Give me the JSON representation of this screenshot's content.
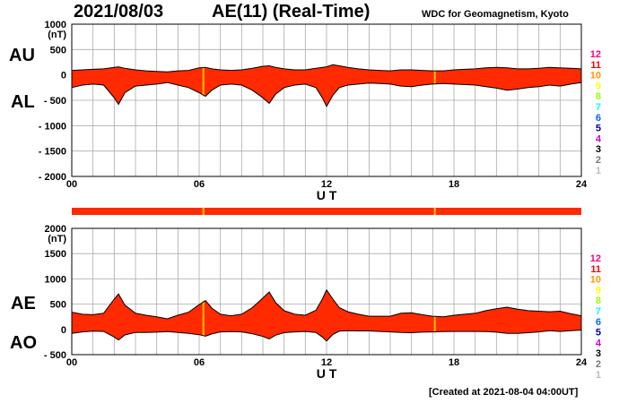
{
  "header": {
    "date": "2021/08/03",
    "title": "AE(11) (Real-Time)",
    "source": "WDC for Geomagnetism, Kyoto"
  },
  "footer": "[Created at 2021-08-04 04:00UT]",
  "colors": {
    "fill": "#ff2a00",
    "outline": "#000000",
    "highlight": "#ffc000",
    "grid": "#aaaaaa"
  },
  "station_count_legend": [
    {
      "label": "12",
      "color": "#ff0080"
    },
    {
      "label": "11",
      "color": "#ff0000"
    },
    {
      "label": "10",
      "color": "#ff9900"
    },
    {
      "label": "9",
      "color": "#ffff00"
    },
    {
      "label": "8",
      "color": "#99ff00"
    },
    {
      "label": "7",
      "color": "#00ffff"
    },
    {
      "label": "6",
      "color": "#0066ff"
    },
    {
      "label": "5",
      "color": "#0000aa"
    },
    {
      "label": "4",
      "color": "#cc00cc"
    },
    {
      "label": "3",
      "color": "#000000"
    },
    {
      "label": "2",
      "color": "#777777"
    },
    {
      "label": "1",
      "color": "#bbbbbb"
    }
  ],
  "chart_data": [
    {
      "type": "area",
      "id": "au-al",
      "upper_label": "AU",
      "lower_label": "AL",
      "unit": "(nT)",
      "xlabel": "U T",
      "xlim": [
        0,
        24
      ],
      "ylim": [
        -2000,
        1000
      ],
      "x_ticks": [
        "00",
        "06",
        "12",
        "18",
        "24"
      ],
      "y_ticks": [
        "1000",
        "500",
        "0",
        "- 500",
        "- 1000",
        "- 1500",
        "- 2000"
      ],
      "x": [
        0,
        0.5,
        1,
        1.5,
        2,
        2.2,
        2.5,
        3,
        3.5,
        4,
        4.5,
        5,
        5.5,
        6,
        6.3,
        6.6,
        7,
        7.5,
        8,
        8.5,
        9,
        9.3,
        9.6,
        10,
        10.5,
        11,
        11.5,
        11.8,
        12,
        12.3,
        12.6,
        13,
        13.5,
        14,
        14.5,
        15,
        15.5,
        16,
        16.5,
        17,
        17.5,
        18,
        18.5,
        19,
        19.5,
        20,
        20.5,
        21,
        21.5,
        22,
        22.5,
        23,
        23.5,
        24
      ],
      "au": [
        90,
        100,
        110,
        120,
        150,
        160,
        130,
        100,
        80,
        70,
        60,
        80,
        90,
        140,
        150,
        120,
        100,
        90,
        100,
        130,
        170,
        180,
        150,
        120,
        100,
        100,
        130,
        150,
        160,
        200,
        180,
        150,
        120,
        100,
        90,
        80,
        100,
        100,
        90,
        80,
        80,
        100,
        110,
        120,
        140,
        150,
        140,
        120,
        120,
        130,
        150,
        140,
        130,
        120
      ],
      "al": [
        -250,
        -200,
        -180,
        -200,
        -450,
        -580,
        -350,
        -220,
        -200,
        -180,
        -150,
        -200,
        -250,
        -350,
        -420,
        -300,
        -200,
        -180,
        -200,
        -300,
        -450,
        -560,
        -380,
        -250,
        -200,
        -180,
        -250,
        -450,
        -620,
        -400,
        -250,
        -200,
        -180,
        -160,
        -170,
        -180,
        -220,
        -230,
        -200,
        -180,
        -170,
        -180,
        -190,
        -200,
        -230,
        -260,
        -300,
        -280,
        -250,
        -230,
        -200,
        -220,
        -180,
        -150
      ],
      "highlights": [
        6.2,
        17.1
      ]
    },
    {
      "type": "area",
      "id": "ae-ao",
      "upper_label": "AE",
      "lower_label": "AO",
      "unit": "(nT)",
      "xlabel": "U T",
      "xlim": [
        0,
        24
      ],
      "ylim": [
        -500,
        2000
      ],
      "x_ticks": [
        "00",
        "06",
        "12",
        "18",
        "24"
      ],
      "y_ticks": [
        "2000",
        "1500",
        "1000",
        "500",
        "0",
        "- 500"
      ],
      "x": [
        0,
        0.5,
        1,
        1.5,
        2,
        2.2,
        2.5,
        3,
        3.5,
        4,
        4.5,
        5,
        5.5,
        6,
        6.3,
        6.6,
        7,
        7.5,
        8,
        8.5,
        9,
        9.3,
        9.6,
        10,
        10.5,
        11,
        11.5,
        11.8,
        12,
        12.3,
        12.6,
        13,
        13.5,
        14,
        14.5,
        15,
        15.5,
        16,
        16.5,
        17,
        17.5,
        18,
        18.5,
        19,
        19.5,
        20,
        20.5,
        21,
        21.5,
        22,
        22.5,
        23,
        23.5,
        24
      ],
      "ae": [
        340,
        300,
        290,
        320,
        600,
        700,
        480,
        320,
        280,
        250,
        210,
        280,
        340,
        490,
        570,
        420,
        300,
        270,
        300,
        430,
        620,
        740,
        530,
        370,
        300,
        280,
        380,
        600,
        780,
        600,
        430,
        350,
        300,
        260,
        260,
        260,
        320,
        330,
        290,
        260,
        250,
        280,
        300,
        320,
        370,
        410,
        440,
        400,
        370,
        360,
        350,
        360,
        310,
        270
      ],
      "ao": [
        -80,
        -50,
        -35,
        -40,
        -150,
        -210,
        -110,
        -60,
        -60,
        -55,
        -45,
        -60,
        -80,
        -105,
        -135,
        -90,
        -50,
        -45,
        -50,
        -85,
        -140,
        -190,
        -115,
        -65,
        -50,
        -40,
        -60,
        -150,
        -230,
        -100,
        -35,
        -25,
        -30,
        -30,
        -40,
        -50,
        -60,
        -65,
        -55,
        -50,
        -45,
        -40,
        -40,
        -40,
        -45,
        -55,
        -80,
        -80,
        -65,
        -50,
        -25,
        -40,
        -25,
        -15
      ],
      "highlights": [
        6.2,
        17.1
      ]
    }
  ]
}
